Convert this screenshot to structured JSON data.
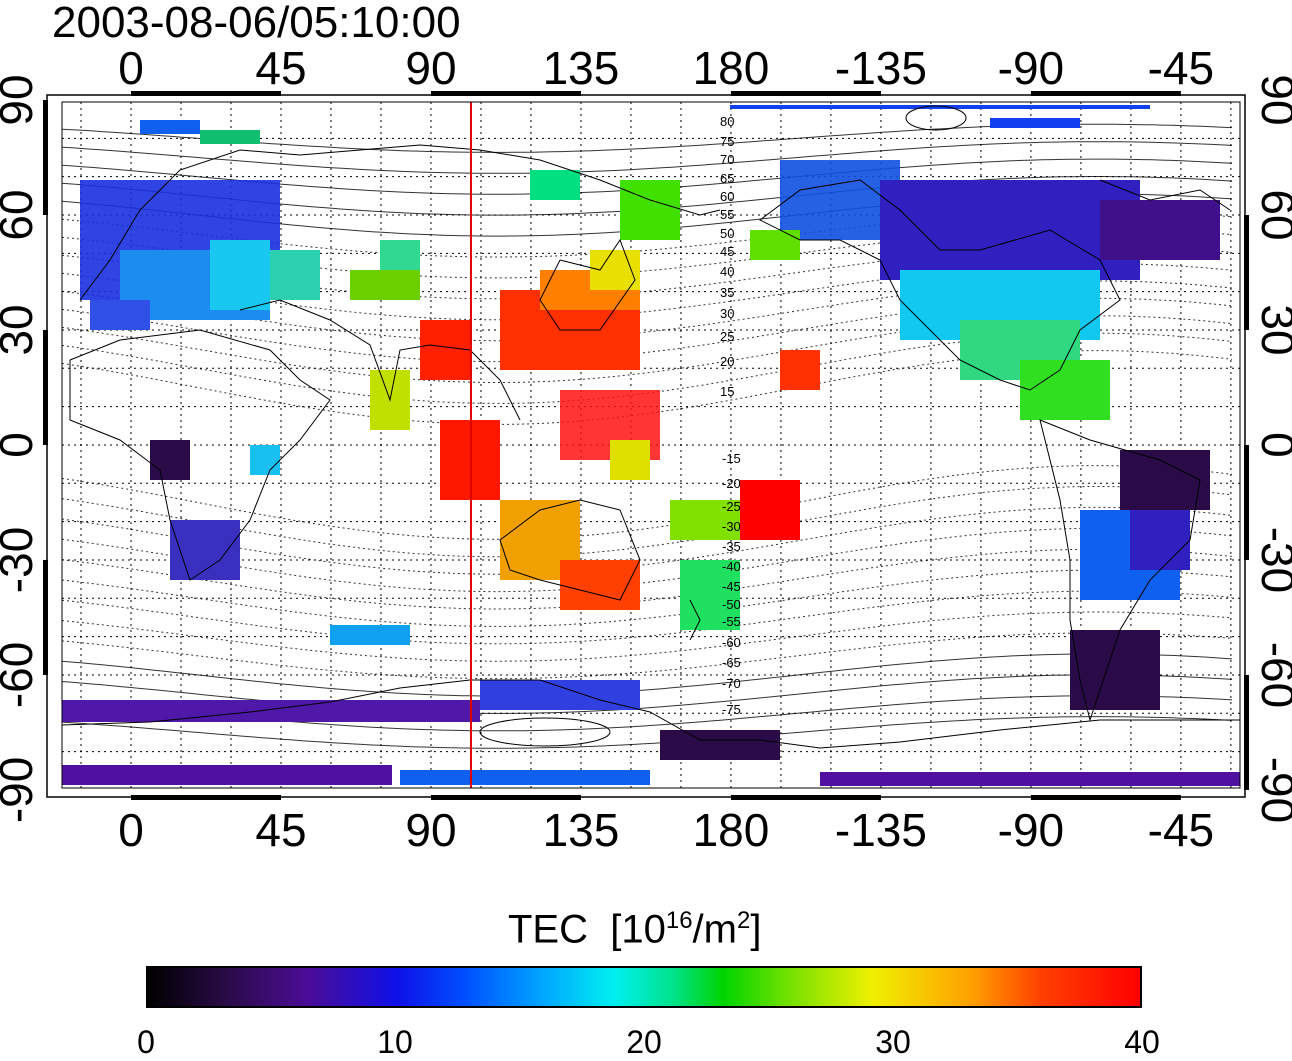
{
  "title": "2003-08-06/05:10:00",
  "x_axis_labels": [
    "0",
    "45",
    "90",
    "135",
    "180",
    "-135",
    "-90",
    "-45"
  ],
  "y_axis_labels": [
    "90",
    "60",
    "30",
    "0",
    "-30",
    "-60",
    "-90"
  ],
  "magnetic_latitude_labels": {
    "north": [
      "80",
      "75",
      "70",
      "65",
      "60",
      "55",
      "50",
      "45",
      "40",
      "35",
      "30",
      "25",
      "20",
      "15"
    ],
    "south": [
      "-15",
      "-20",
      "-25",
      "-30",
      "-35",
      "-40",
      "-45",
      "-50",
      "-55",
      "-60",
      "-65",
      "-70",
      "-75"
    ]
  },
  "sun_meridian_longitude": 102,
  "colorbar": {
    "title": "TEC",
    "unit_base": "[10",
    "unit_exp": "16",
    "unit_mid": "/m",
    "unit_exp2": "2",
    "unit_end": "]",
    "ticks": [
      "0",
      "10",
      "20",
      "30",
      "40"
    ],
    "range": [
      0,
      40
    ]
  },
  "colors": {
    "meridian": "#e00000",
    "low_tec": "#2a0b48",
    "high_tec": "#ff0000"
  }
}
